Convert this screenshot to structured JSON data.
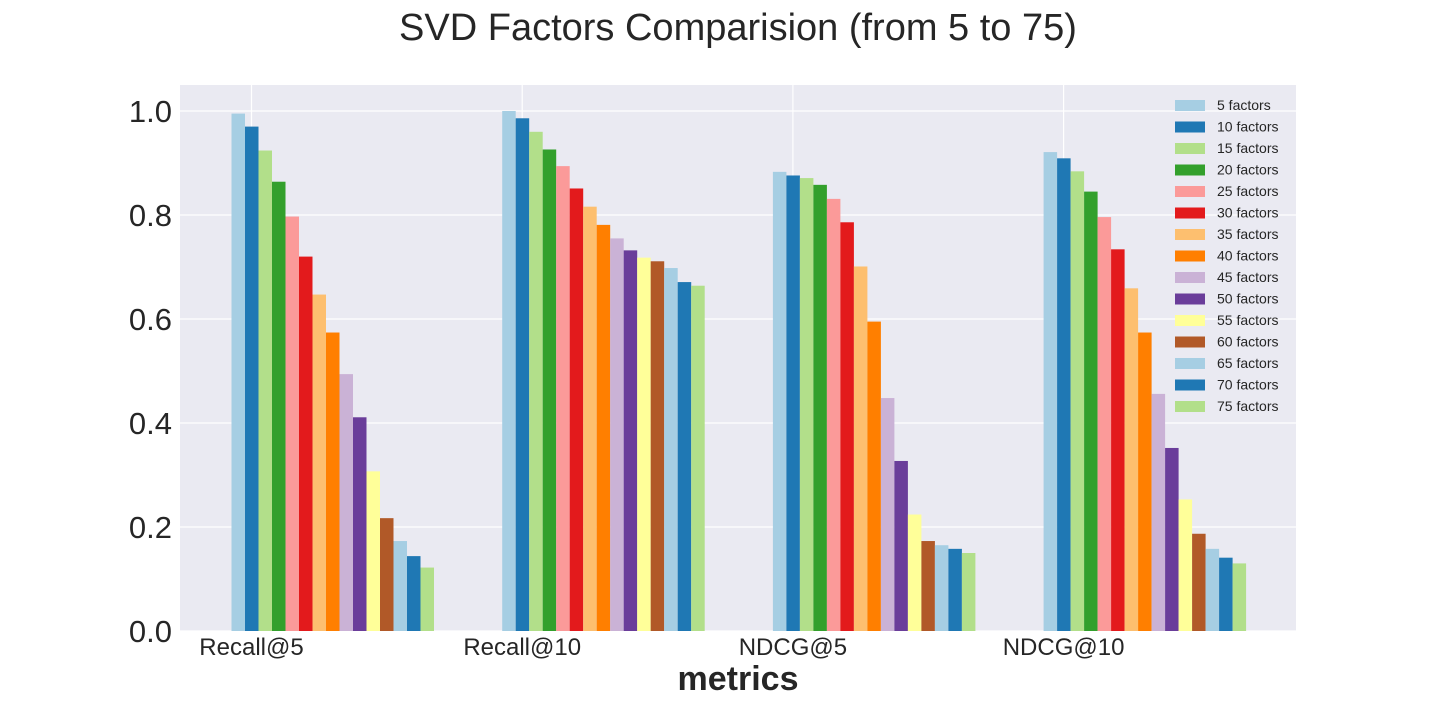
{
  "chart_data": {
    "type": "bar",
    "title": "SVD Factors Comparision (from 5 to 75)",
    "xlabel": "metrics",
    "ylabel": "",
    "ylim": [
      0,
      1.05
    ],
    "yticks": [
      "0.0",
      "0.2",
      "0.4",
      "0.6",
      "0.8",
      "1.0"
    ],
    "categories": [
      "Recall@5",
      "Recall@10",
      "NDCG@5",
      "NDCG@10"
    ],
    "grid": true,
    "legend_position": "top-right",
    "series": [
      {
        "name": "5 factors",
        "color": "#a6cee3",
        "values": [
          0.995,
          1.0,
          0.883,
          0.921
        ]
      },
      {
        "name": "10 factors",
        "color": "#1f78b4",
        "values": [
          0.97,
          0.986,
          0.876,
          0.909
        ]
      },
      {
        "name": "15 factors",
        "color": "#b2df8a",
        "values": [
          0.924,
          0.96,
          0.871,
          0.884
        ]
      },
      {
        "name": "20 factors",
        "color": "#33a02c",
        "values": [
          0.864,
          0.926,
          0.858,
          0.845
        ]
      },
      {
        "name": "25 factors",
        "color": "#fb9a99",
        "values": [
          0.797,
          0.894,
          0.831,
          0.796
        ]
      },
      {
        "name": "30 factors",
        "color": "#e31a1c",
        "values": [
          0.72,
          0.851,
          0.786,
          0.734
        ]
      },
      {
        "name": "35 factors",
        "color": "#fdbf6f",
        "values": [
          0.647,
          0.816,
          0.701,
          0.659
        ]
      },
      {
        "name": "40 factors",
        "color": "#ff7f00",
        "values": [
          0.574,
          0.781,
          0.595,
          0.574
        ]
      },
      {
        "name": "45 factors",
        "color": "#cab2d6",
        "values": [
          0.494,
          0.755,
          0.448,
          0.456
        ]
      },
      {
        "name": "50 factors",
        "color": "#6a3d9a",
        "values": [
          0.411,
          0.732,
          0.327,
          0.352
        ]
      },
      {
        "name": "55 factors",
        "color": "#ffff99",
        "values": [
          0.307,
          0.718,
          0.224,
          0.253
        ]
      },
      {
        "name": "60 factors",
        "color": "#b15928",
        "values": [
          0.217,
          0.711,
          0.173,
          0.187
        ]
      },
      {
        "name": "65 factors",
        "color": "#a6cee3",
        "values": [
          0.173,
          0.698,
          0.165,
          0.158
        ]
      },
      {
        "name": "70 factors",
        "color": "#1f78b4",
        "values": [
          0.144,
          0.671,
          0.158,
          0.141
        ]
      },
      {
        "name": "75 factors",
        "color": "#b2df8a",
        "values": [
          0.122,
          0.664,
          0.15,
          0.13
        ]
      }
    ]
  }
}
